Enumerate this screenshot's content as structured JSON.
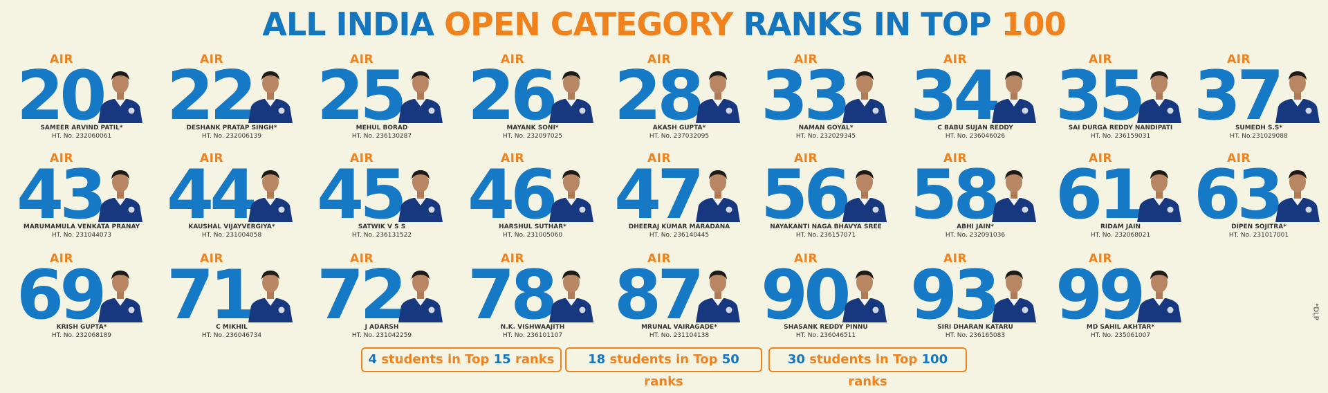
{
  "title": {
    "part1": "ALL INDIA ",
    "part2": "OPEN CATEGORY",
    "part3": " RANKS IN TOP ",
    "part4": "100"
  },
  "air_label": "AIR",
  "students": [
    {
      "rank": "20",
      "name": "SAMEER ARVIND PATIL*",
      "ht": "HT. No. 232060061"
    },
    {
      "rank": "22",
      "name": "DESHANK PRATAP SINGH*",
      "ht": "HT. No. 232006139"
    },
    {
      "rank": "25",
      "name": "MEHUL BORAD",
      "ht": "HT. No. 236130287"
    },
    {
      "rank": "26",
      "name": "MAYANK SONI*",
      "ht": "HT. No. 232097025"
    },
    {
      "rank": "28",
      "name": "AKASH GUPTA*",
      "ht": "HT. No. 237032095"
    },
    {
      "rank": "33",
      "name": "NAMAN GOYAL*",
      "ht": "HT. No. 232029345"
    },
    {
      "rank": "34",
      "name": "C BABU SUJAN REDDY",
      "ht": "HT. No. 236046026"
    },
    {
      "rank": "35",
      "name": "SAI DURGA REDDY NANDIPATI",
      "ht": "HT. No. 236159031"
    },
    {
      "rank": "37",
      "name": "SUMEDH S.S*",
      "ht": "HT. No.231029088"
    },
    {
      "rank": "43",
      "name": "MARUMAMULA VENKATA PRANAY",
      "ht": "HT. No. 231044073"
    },
    {
      "rank": "44",
      "name": "KAUSHAL VIJAYVERGIYA*",
      "ht": "HT. No. 231004058"
    },
    {
      "rank": "45",
      "name": "SATWIK V S S",
      "ht": "HT. No. 236131522"
    },
    {
      "rank": "46",
      "name": "HARSHUL SUTHAR*",
      "ht": "HT. No. 231005060"
    },
    {
      "rank": "47",
      "name": "DHEERAJ KUMAR MARADANA",
      "ht": "HT. No. 236140445"
    },
    {
      "rank": "56",
      "name": "NAYAKANTI NAGA BHAVYA SREE",
      "ht": "HT. No. 236157071"
    },
    {
      "rank": "58",
      "name": "ABHI JAIN*",
      "ht": "HT. No. 232091036"
    },
    {
      "rank": "61",
      "name": "RIDAM JAIN",
      "ht": "HT. No. 232068021"
    },
    {
      "rank": "63",
      "name": "DIPEN SOJITRA*",
      "ht": "HT. No. 231017001"
    },
    {
      "rank": "69",
      "name": "KRISH GUPTA*",
      "ht": "HT. No. 232068189"
    },
    {
      "rank": "71",
      "name": "C MIKHIL",
      "ht": "HT. No. 236046734"
    },
    {
      "rank": "72",
      "name": "J ADARSH",
      "ht": "HT. No. 231042259"
    },
    {
      "rank": "78",
      "name": "N.K. VISHWAAJITH",
      "ht": "HT. No. 236101107"
    },
    {
      "rank": "87",
      "name": "MRUNAL VAIRAGADE*",
      "ht": "HT. No. 231104138"
    },
    {
      "rank": "90",
      "name": "SHASANK REDDY PINNU",
      "ht": "HT. No. 236046511"
    },
    {
      "rank": "93",
      "name": "SIRI DHARAN KATARU",
      "ht": "HT. No. 236165083"
    },
    {
      "rank": "99",
      "name": "MD SAHIL AKHTAR*",
      "ht": "HT. No. 235061007"
    }
  ],
  "summary": [
    {
      "n1": "4",
      "t1": " students in Top ",
      "n2": "15",
      "t2": " ranks"
    },
    {
      "n1": "18",
      "t1": " students in Top ",
      "n2": "50",
      "t2": " ranks"
    },
    {
      "n1": "30",
      "t1": " students in Top ",
      "n2": "100",
      "t2": " ranks"
    }
  ],
  "side_note": "*DLP",
  "colors": {
    "blue": "#1576c0",
    "orange": "#f0821e",
    "background": "#f5f4e3"
  }
}
